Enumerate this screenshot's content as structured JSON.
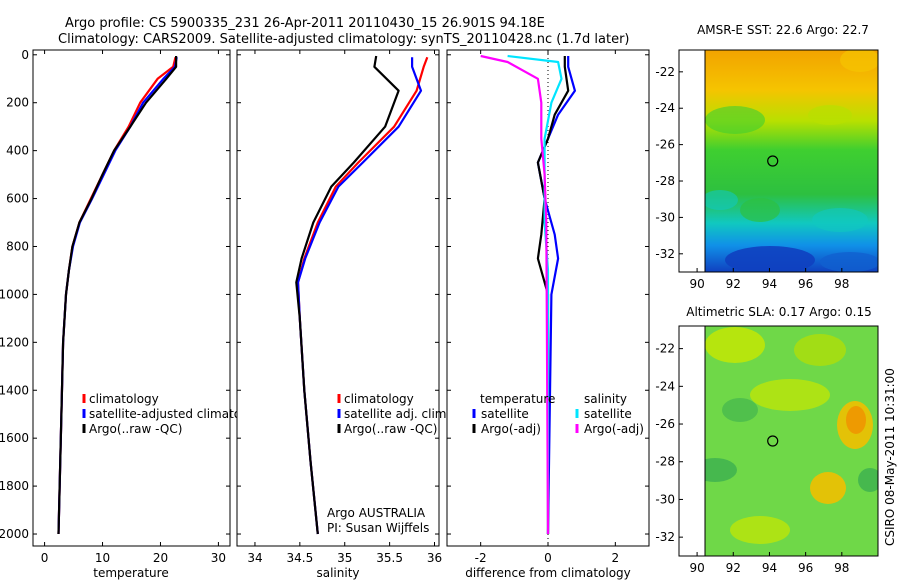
{
  "title_line1": "Argo profile: CS 5900335_231 26-Apr-2011 20110430_15 26.901S 94.18E",
  "title_line2": "Climatology: CARS2009. Satellite-adjusted climatology: synTS_20110428.nc (1.7d later)",
  "side_label": "CSIRO 08-May-2011 10:31:00",
  "colors": {
    "climatology": "#ff0000",
    "satellite": "#0000ff",
    "argo": "#000000",
    "sal_satellite": "#00e5ff",
    "sal_argo": "#ff00ff"
  },
  "chart_data": [
    {
      "type": "line",
      "xlabel": "temperature",
      "ylabel": "",
      "xlim": [
        -2,
        32
      ],
      "ylim": [
        2050,
        -20
      ],
      "xticks": [
        0,
        10,
        20,
        30
      ],
      "yticks": [
        0,
        200,
        400,
        600,
        800,
        1000,
        1200,
        1400,
        1600,
        1800,
        2000
      ],
      "legend": [
        "climatology",
        "satellite-adjusted climatology",
        "Argo(..raw -QC)"
      ],
      "legend_placement": "lower-middle",
      "series": [
        {
          "name": "climatology",
          "color": "#ff0000",
          "x": [
            22.6,
            22.2,
            19.5,
            16.5,
            14.5,
            12,
            10,
            8,
            6,
            4.8,
            4.2,
            3.7,
            3.2,
            2.9,
            2.4
          ],
          "y": [
            10,
            50,
            100,
            200,
            300,
            400,
            500,
            600,
            700,
            800,
            900,
            1000,
            1200,
            1500,
            2000
          ]
        },
        {
          "name": "satellite-adjusted climatology",
          "color": "#0000ff",
          "x": [
            22.8,
            22.5,
            20.5,
            17,
            14.8,
            12.2,
            10.2,
            8.2,
            6.1,
            4.9,
            4.2,
            3.7,
            3.2,
            2.9,
            2.4
          ],
          "y": [
            10,
            50,
            100,
            200,
            300,
            400,
            500,
            600,
            700,
            800,
            900,
            1000,
            1200,
            1500,
            2000
          ]
        },
        {
          "name": "Argo(..raw -QC)",
          "color": "#000000",
          "x": [
            22.7,
            22.7,
            21,
            17.5,
            14.8,
            12,
            10,
            8.1,
            6,
            4.8,
            4.2,
            3.7,
            3.2,
            2.9,
            2.4
          ],
          "y": [
            5,
            50,
            100,
            200,
            300,
            400,
            500,
            600,
            700,
            800,
            900,
            1000,
            1200,
            1500,
            2000
          ]
        }
      ]
    },
    {
      "type": "line",
      "xlabel": "salinity",
      "ylabel": "",
      "xlim": [
        33.8,
        36.05
      ],
      "ylim": [
        2050,
        -20
      ],
      "xticks": [
        34,
        34.5,
        35,
        35.5,
        36
      ],
      "xticklabels": [
        "34",
        "34.5",
        "35",
        "35.5",
        "36"
      ],
      "legend": [
        "climatology",
        "satellite adj. clim.",
        "Argo(..raw -QC)"
      ],
      "legend_placement": "lower-right",
      "annotation": [
        "Argo AUSTRALIA",
        "PI: Susan Wijffels"
      ],
      "series": [
        {
          "name": "climatology",
          "color": "#ff0000",
          "x": [
            35.92,
            35.88,
            35.8,
            35.55,
            35.15,
            34.9,
            34.7,
            34.55,
            34.48,
            34.5,
            34.55,
            34.62,
            34.7
          ],
          "y": [
            10,
            50,
            150,
            300,
            450,
            550,
            700,
            850,
            950,
            1100,
            1400,
            1700,
            2000
          ]
        },
        {
          "name": "satellite adj. clim.",
          "color": "#0000ff",
          "x": [
            35.75,
            35.75,
            35.85,
            35.6,
            35.2,
            34.93,
            34.72,
            34.56,
            34.48,
            34.5,
            34.55,
            34.62,
            34.7
          ],
          "y": [
            10,
            50,
            150,
            300,
            450,
            550,
            700,
            850,
            950,
            1100,
            1400,
            1700,
            2000
          ]
        },
        {
          "name": "Argo(..raw -QC)",
          "color": "#000000",
          "x": [
            35.35,
            35.33,
            35.6,
            35.45,
            35.1,
            34.85,
            34.65,
            34.52,
            34.46,
            34.5,
            34.55,
            34.62,
            34.7
          ],
          "y": [
            5,
            50,
            150,
            300,
            450,
            550,
            700,
            850,
            950,
            1100,
            1400,
            1700,
            2000
          ]
        }
      ]
    },
    {
      "type": "line",
      "xlabel": "difference from climatology",
      "ylabel": "",
      "xlim": [
        -3,
        3
      ],
      "ylim": [
        2050,
        -20
      ],
      "xticks": [
        -2,
        0,
        2
      ],
      "legend_groups": [
        {
          "title": "temperature",
          "items": [
            "satellite",
            "Argo(-adj)"
          ]
        },
        {
          "title": "salinity",
          "items": [
            "satellite",
            "Argo(-adj)"
          ]
        }
      ],
      "legend_placement": "lower-middle",
      "series": [
        {
          "name": "temperature satellite",
          "color": "#0000ff",
          "x": [
            0.6,
            0.6,
            0.8,
            0.3,
            0,
            -0.3,
            -0.1,
            0.2,
            0.3,
            0.1,
            0
          ],
          "y": [
            5,
            50,
            150,
            250,
            350,
            450,
            600,
            750,
            850,
            1000,
            2000
          ]
        },
        {
          "name": "temperature Argo(-adj)",
          "color": "#000000",
          "x": [
            0.5,
            0.5,
            0.6,
            0.2,
            0,
            -0.3,
            -0.1,
            -0.2,
            -0.3,
            0,
            0
          ],
          "y": [
            5,
            50,
            150,
            250,
            350,
            450,
            600,
            750,
            850,
            1000,
            2000
          ]
        },
        {
          "name": "salinity satellite",
          "color": "#00e5ff",
          "x": [
            -1.2,
            0.3,
            0.4,
            0.1,
            -0.1,
            -0.1,
            -0.1,
            0,
            0
          ],
          "y": [
            5,
            30,
            100,
            200,
            350,
            500,
            700,
            900,
            2000
          ]
        },
        {
          "name": "salinity Argo(-adj)",
          "color": "#ff00ff",
          "x": [
            -2,
            -1.2,
            -0.3,
            -0.2,
            -0.2,
            -0.1,
            -0.05,
            0
          ],
          "y": [
            5,
            30,
            100,
            200,
            350,
            500,
            700,
            2000
          ]
        }
      ]
    },
    {
      "type": "heatmap",
      "title": "AMSR-E SST: 22.6 Argo: 22.7",
      "xlim": [
        89,
        100
      ],
      "ylim": [
        -33,
        -20.8
      ],
      "xticks": [
        90,
        92,
        94,
        96,
        98
      ],
      "yticks": [
        -22,
        -24,
        -26,
        -28,
        -30,
        -32
      ],
      "marker": {
        "x": 94.18,
        "y": -26.9
      }
    },
    {
      "type": "heatmap",
      "title": "Altimetric SLA: 0.17 Argo: 0.15",
      "xlim": [
        89,
        100
      ],
      "ylim": [
        -33,
        -20.8
      ],
      "xticks": [
        90,
        92,
        94,
        96,
        98
      ],
      "yticks": [
        -22,
        -24,
        -26,
        -28,
        -30,
        -32
      ],
      "marker": {
        "x": 94.18,
        "y": -26.9
      }
    }
  ]
}
